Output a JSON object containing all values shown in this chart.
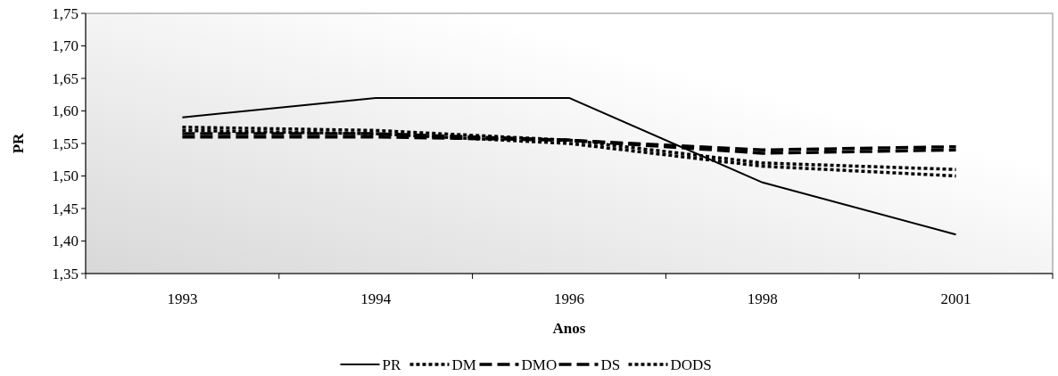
{
  "chart_data": {
    "type": "line",
    "xlabel": "Anos",
    "ylabel": "PR",
    "categories": [
      "1993",
      "1994",
      "1996",
      "1998",
      "2001"
    ],
    "ylim": [
      1.35,
      1.75
    ],
    "yticks": [
      {
        "value": 1.35,
        "label": "1,35"
      },
      {
        "value": 1.4,
        "label": "1,40"
      },
      {
        "value": 1.45,
        "label": "1,45"
      },
      {
        "value": 1.5,
        "label": "1,50"
      },
      {
        "value": 1.55,
        "label": "1,55"
      },
      {
        "value": 1.6,
        "label": "1,60"
      },
      {
        "value": 1.65,
        "label": "1,65"
      },
      {
        "value": 1.7,
        "label": "1,70"
      },
      {
        "value": 1.75,
        "label": "1,75"
      }
    ],
    "grid": false,
    "legend": "bottom",
    "series": [
      {
        "name": "PR",
        "color": "#000000",
        "line_style": "solid",
        "values": [
          1.59,
          1.62,
          1.62,
          1.49,
          1.41
        ]
      },
      {
        "name": "DM",
        "color": "#000000",
        "line_style": "dotted",
        "values": [
          1.575,
          1.57,
          1.555,
          1.52,
          1.51
        ]
      },
      {
        "name": "DMO",
        "color": "#000000",
        "line_style": "dashed",
        "values": [
          1.565,
          1.565,
          1.555,
          1.535,
          1.54
        ]
      },
      {
        "name": "DS",
        "color": "#000000",
        "line_style": "dashed",
        "values": [
          1.56,
          1.56,
          1.555,
          1.54,
          1.545
        ]
      },
      {
        "name": "DODS",
        "color": "#000000",
        "line_style": "dotted",
        "values": [
          1.57,
          1.565,
          1.55,
          1.515,
          1.5
        ]
      }
    ]
  }
}
